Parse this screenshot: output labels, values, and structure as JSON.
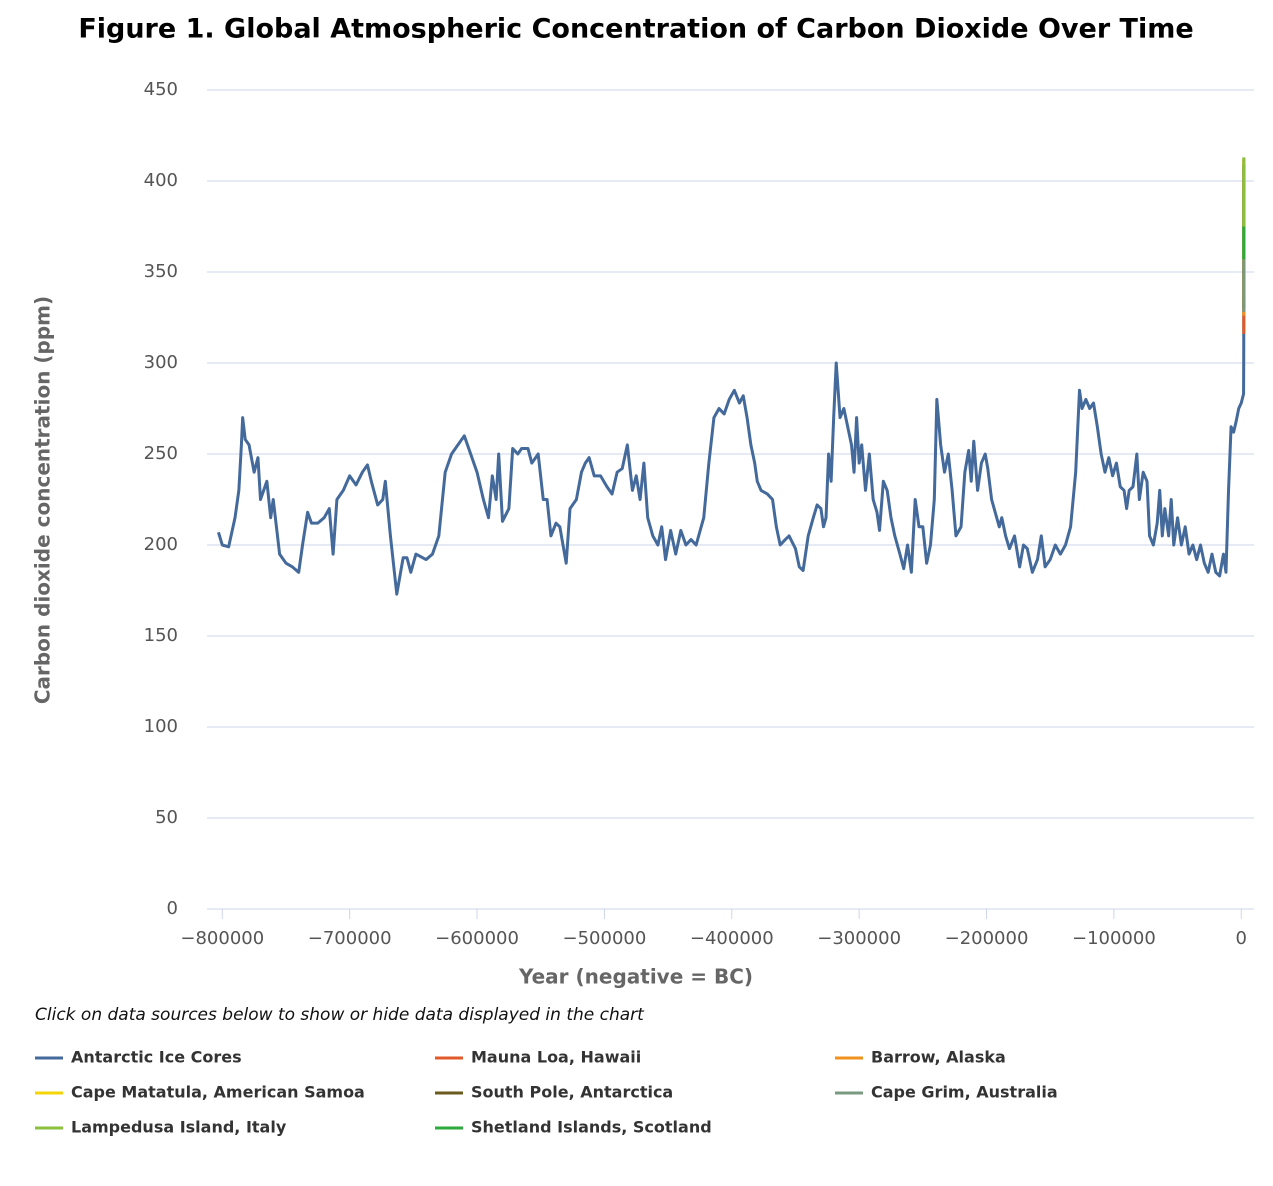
{
  "chart_data": {
    "type": "line",
    "title": "Figure 1. Global Atmospheric Concentration of Carbon Dioxide Over Time",
    "xlabel": "Year (negative = BC)",
    "ylabel": "Carbon dioxide concentration (ppm)",
    "note": "Click on data sources below to show or hide data displayed in the chart",
    "xlim": [
      -812000,
      10000
    ],
    "ylim": [
      0,
      450
    ],
    "xticks": [
      {
        "value": -800000,
        "label": "−800000"
      },
      {
        "value": -700000,
        "label": "−700000"
      },
      {
        "value": -600000,
        "label": "−600000"
      },
      {
        "value": -500000,
        "label": "−500000"
      },
      {
        "value": -400000,
        "label": "−400000"
      },
      {
        "value": -300000,
        "label": "−300000"
      },
      {
        "value": -200000,
        "label": "−200000"
      },
      {
        "value": -100000,
        "label": "−100000"
      },
      0
    ],
    "yticks": [
      0,
      50,
      100,
      150,
      200,
      250,
      300,
      350,
      400,
      450
    ],
    "grid": true,
    "series": [
      {
        "name": "Antarctic Ice Cores",
        "color": "#44699b",
        "x": [
          -803000,
          -800000,
          -795000,
          -790000,
          -787000,
          -785000,
          -784000,
          -782000,
          -779000,
          -775000,
          -772000,
          -770000,
          -765000,
          -762000,
          -760000,
          -755000,
          -750000,
          -745000,
          -740000,
          -737000,
          -733000,
          -730000,
          -725000,
          -720000,
          -716000,
          -713000,
          -710000,
          -705000,
          -700000,
          -695000,
          -690000,
          -686000,
          -683000,
          -678000,
          -674000,
          -672000,
          -668000,
          -663000,
          -658000,
          -655000,
          -652000,
          -648000,
          -640000,
          -635000,
          -630000,
          -625000,
          -620000,
          -615000,
          -610000,
          -605000,
          -600000,
          -595000,
          -591000,
          -588000,
          -585000,
          -583000,
          -580000,
          -575000,
          -572000,
          -568000,
          -565000,
          -560000,
          -557000,
          -552000,
          -548000,
          -545000,
          -542000,
          -538000,
          -535000,
          -530000,
          -527000,
          -522000,
          -518000,
          -515000,
          -512000,
          -508000,
          -503000,
          -498000,
          -494000,
          -490000,
          -486000,
          -482000,
          -478000,
          -475000,
          -472000,
          -469000,
          -466000,
          -462000,
          -458000,
          -455000,
          -452000,
          -448000,
          -444000,
          -440000,
          -436000,
          -432000,
          -428000,
          -422000,
          -418000,
          -414000,
          -410000,
          -406000,
          -402000,
          -398000,
          -394000,
          -391000,
          -388000,
          -385000,
          -382000,
          -380000,
          -377000,
          -372000,
          -368000,
          -365000,
          -362000,
          -358000,
          -355000,
          -350000,
          -347000,
          -344000,
          -340000,
          -336000,
          -333000,
          -330000,
          -328000,
          -326000,
          -324000,
          -322000,
          -320000,
          -318000,
          -315000,
          -312000,
          -309000,
          -306000,
          -304000,
          -302000,
          -300000,
          -298000,
          -295000,
          -292000,
          -289000,
          -286000,
          -284000,
          -281000,
          -278000,
          -275000,
          -272000,
          -268000,
          -265000,
          -262000,
          -259000,
          -256000,
          -253000,
          -250000,
          -247000,
          -244000,
          -241000,
          -239000,
          -236000,
          -233000,
          -230000,
          -227000,
          -224000,
          -220000,
          -217000,
          -214000,
          -212000,
          -210000,
          -207000,
          -204000,
          -201000,
          -199000,
          -196000,
          -194000,
          -190000,
          -188000,
          -185000,
          -182000,
          -178000,
          -174000,
          -171000,
          -168000,
          -164000,
          -160000,
          -157000,
          -154000,
          -150000,
          -146000,
          -142000,
          -138000,
          -134000,
          -130000,
          -127000,
          -125000,
          -122000,
          -119000,
          -116000,
          -113000,
          -110000,
          -107000,
          -104000,
          -101000,
          -98000,
          -95000,
          -92000,
          -90000,
          -88000,
          -85000,
          -82000,
          -80000,
          -77000,
          -74000,
          -72000,
          -69000,
          -66000,
          -64000,
          -62000,
          -60000,
          -57000,
          -55000,
          -53000,
          -50000,
          -47000,
          -44000,
          -41000,
          -38000,
          -35000,
          -32000,
          -29000,
          -26000,
          -23000,
          -20000,
          -17000,
          -14000,
          -12000,
          -10000,
          -8000,
          -6000,
          -4000,
          -2000,
          0,
          1800,
          1900,
          1950,
          1978
        ],
        "values": [
          207,
          200,
          199,
          215,
          230,
          255,
          270,
          258,
          255,
          240,
          248,
          225,
          235,
          215,
          225,
          195,
          190,
          188,
          185,
          200,
          218,
          212,
          212,
          215,
          220,
          195,
          225,
          230,
          238,
          233,
          240,
          244,
          235,
          222,
          225,
          235,
          205,
          173,
          193,
          193,
          185,
          195,
          192,
          195,
          205,
          240,
          250,
          255,
          260,
          250,
          240,
          225,
          215,
          238,
          225,
          250,
          213,
          220,
          253,
          250,
          253,
          253,
          245,
          250,
          225,
          225,
          205,
          212,
          210,
          190,
          220,
          225,
          240,
          245,
          248,
          238,
          238,
          232,
          228,
          240,
          242,
          255,
          230,
          238,
          225,
          245,
          215,
          205,
          200,
          210,
          192,
          208,
          195,
          208,
          200,
          203,
          200,
          215,
          245,
          270,
          275,
          272,
          280,
          285,
          278,
          282,
          270,
          255,
          245,
          235,
          230,
          228,
          225,
          210,
          200,
          203,
          205,
          198,
          188,
          186,
          205,
          215,
          222,
          220,
          210,
          215,
          250,
          235,
          270,
          300,
          270,
          275,
          265,
          255,
          240,
          270,
          245,
          255,
          230,
          250,
          225,
          218,
          208,
          235,
          230,
          215,
          205,
          195,
          187,
          200,
          185,
          225,
          210,
          210,
          190,
          200,
          225,
          280,
          255,
          240,
          250,
          230,
          205,
          210,
          240,
          252,
          235,
          257,
          230,
          245,
          250,
          242,
          225,
          220,
          210,
          215,
          205,
          198,
          205,
          188,
          200,
          198,
          185,
          192,
          205,
          188,
          192,
          200,
          195,
          200,
          210,
          240,
          285,
          275,
          280,
          275,
          278,
          265,
          250,
          240,
          248,
          238,
          245,
          232,
          230,
          220,
          230,
          232,
          250,
          225,
          240,
          235,
          205,
          200,
          212,
          230,
          205,
          220,
          205,
          225,
          200,
          215,
          200,
          210,
          195,
          200,
          192,
          200,
          190,
          185,
          195,
          185,
          183,
          195,
          185,
          230,
          265,
          262,
          268,
          275,
          278,
          283,
          296,
          311,
          334
        ]
      },
      {
        "name": "Mauna Loa, Hawaii",
        "color": "#e05a2a",
        "x": [
          1959,
          1980,
          2000,
          2020
        ],
        "values": [
          316,
          339,
          370,
          412
        ]
      },
      {
        "name": "Barrow, Alaska",
        "color": "#f0921e",
        "x": [
          1971,
          2020
        ],
        "values": [
          326,
          412
        ]
      },
      {
        "name": "Cape Matatula, American Samoa",
        "color": "#f5d50a",
        "x": [
          1976,
          2020
        ],
        "values": [
          332,
          411
        ]
      },
      {
        "name": "South Pole, Antarctica",
        "color": "#6b5a1e",
        "x": [
          1976,
          2020
        ],
        "values": [
          330,
          409
        ]
      },
      {
        "name": "Cape Grim, Australia",
        "color": "#7a9a80",
        "x": [
          1976,
          2020
        ],
        "values": [
          328,
          408
        ]
      },
      {
        "name": "Lampedusa Island, Italy",
        "color": "#8bc03c",
        "x": [
          1993,
          2020
        ],
        "values": [
          357,
          413
        ]
      },
      {
        "name": "Shetland Islands, Scotland",
        "color": "#2eaa3c",
        "x": [
          1993,
          2003
        ],
        "values": [
          357,
          375
        ]
      }
    ]
  }
}
